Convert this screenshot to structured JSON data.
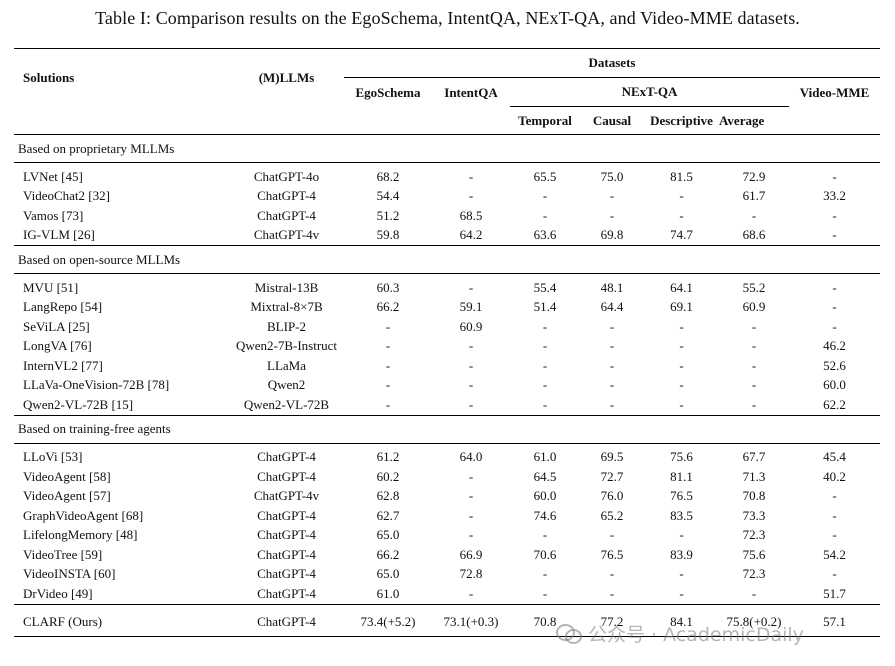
{
  "caption": "Table I: Comparison results on the EgoSchema, IntentQA, NExT-QA, and Video-MME datasets.",
  "headers": {
    "solutions": "Solutions",
    "llms": "(M)LLMs",
    "datasets": "Datasets",
    "egoschema": "EgoSchema",
    "intentqa": "IntentQA",
    "nextqa": "NExT-QA",
    "videomme": "Video-MME",
    "temporal": "Temporal",
    "causal": "Causal",
    "descriptive": "Descriptive",
    "average": "Average"
  },
  "sections": [
    {
      "title": "Based on proprietary MLLMs",
      "rows": [
        {
          "name": "LVNet [45]",
          "llm": "ChatGPT-4o",
          "ego": "68.2",
          "intent": "-",
          "temporal": "65.5",
          "causal": "75.0",
          "desc": "81.5",
          "avg": "72.9",
          "vmme": "-",
          "bold": [
            "ego"
          ]
        },
        {
          "name": "VideoChat2 [32]",
          "llm": "ChatGPT-4",
          "ego": "54.4",
          "intent": "-",
          "temporal": "-",
          "causal": "-",
          "desc": "-",
          "avg": "61.7",
          "vmme": "33.2",
          "bold": []
        },
        {
          "name": "Vamos [73]",
          "llm": "ChatGPT-4",
          "ego": "51.2",
          "intent": "68.5",
          "temporal": "-",
          "causal": "-",
          "desc": "-",
          "avg": "-",
          "vmme": "-",
          "bold": []
        },
        {
          "name": "IG-VLM [26]",
          "llm": "ChatGPT-4v",
          "ego": "59.8",
          "intent": "64.2",
          "temporal": "63.6",
          "causal": "69.8",
          "desc": "74.7",
          "avg": "68.6",
          "vmme": "-",
          "bold": []
        }
      ]
    },
    {
      "title": "Based on open-source MLLMs",
      "rows": [
        {
          "name": "MVU [51]",
          "llm": "Mistral-13B",
          "ego": "60.3",
          "intent": "-",
          "temporal": "55.4",
          "causal": "48.1",
          "desc": "64.1",
          "avg": "55.2",
          "vmme": "-",
          "bold": []
        },
        {
          "name": "LangRepo [54]",
          "llm": "Mixtral-8×7B",
          "ego": "66.2",
          "intent": "59.1",
          "temporal": "51.4",
          "causal": "64.4",
          "desc": "69.1",
          "avg": "60.9",
          "vmme": "-",
          "bold": []
        },
        {
          "name": "SeViLA [25]",
          "llm": "BLIP-2",
          "ego": "-",
          "intent": "60.9",
          "temporal": "-",
          "causal": "-",
          "desc": "-",
          "avg": "-",
          "vmme": "-",
          "bold": []
        },
        {
          "name": "LongVA [76]",
          "llm": "Qwen2-7B-Instruct",
          "ego": "-",
          "intent": "-",
          "temporal": "-",
          "causal": "-",
          "desc": "-",
          "avg": "-",
          "vmme": "46.2",
          "bold": []
        },
        {
          "name": "InternVL2 [77]",
          "llm": "LLaMa",
          "ego": "-",
          "intent": "-",
          "temporal": "-",
          "causal": "-",
          "desc": "-",
          "avg": "-",
          "vmme": "52.6",
          "bold": []
        },
        {
          "name": "LLaVa-OneVision-72B [78]",
          "llm": "Qwen2",
          "ego": "-",
          "intent": "-",
          "temporal": "-",
          "causal": "-",
          "desc": "-",
          "avg": "-",
          "vmme": "60.0",
          "bold": []
        },
        {
          "name": "Qwen2-VL-72B [15]",
          "llm": "Qwen2-VL-72B",
          "ego": "-",
          "intent": "-",
          "temporal": "-",
          "causal": "-",
          "desc": "-",
          "avg": "-",
          "vmme": "62.2",
          "bold": [
            "vmme"
          ]
        }
      ]
    },
    {
      "title": "Based on training-free agents",
      "rows": [
        {
          "name": "LLoVi [53]",
          "llm": "ChatGPT-4",
          "ego": "61.2",
          "intent": "64.0",
          "temporal": "61.0",
          "causal": "69.5",
          "desc": "75.6",
          "avg": "67.7",
          "vmme": "45.4",
          "bold": []
        },
        {
          "name": "VideoAgent [58]",
          "llm": "ChatGPT-4",
          "ego": "60.2",
          "intent": "-",
          "temporal": "64.5",
          "causal": "72.7",
          "desc": "81.1",
          "avg": "71.3",
          "vmme": "40.2",
          "bold": []
        },
        {
          "name": "VideoAgent [57]",
          "llm": "ChatGPT-4v",
          "ego": "62.8",
          "intent": "-",
          "temporal": "60.0",
          "causal": "76.0",
          "desc": "76.5",
          "avg": "70.8",
          "vmme": "-",
          "bold": []
        },
        {
          "name": "GraphVideoAgent [68]",
          "llm": "ChatGPT-4",
          "ego": "62.7",
          "intent": "-",
          "temporal": "74.6",
          "causal": "65.2",
          "desc": "83.5",
          "avg": "73.3",
          "vmme": "-",
          "bold": [
            "temporal"
          ]
        },
        {
          "name": "LifelongMemory [48]",
          "llm": "ChatGPT-4",
          "ego": "65.0",
          "intent": "-",
          "temporal": "-",
          "causal": "-",
          "desc": "-",
          "avg": "72.3",
          "vmme": "-",
          "bold": []
        },
        {
          "name": "VideoTree [59]",
          "llm": "ChatGPT-4",
          "ego": "66.2",
          "intent": "66.9",
          "temporal": "70.6",
          "causal": "76.5",
          "desc": "83.9",
          "avg": "75.6",
          "vmme": "54.2",
          "bold": [
            "causal",
            "desc",
            "avg"
          ]
        },
        {
          "name": "VideoINSTA [60]",
          "llm": "ChatGPT-4",
          "ego": "65.0",
          "intent": "72.8",
          "temporal": "-",
          "causal": "-",
          "desc": "-",
          "avg": "72.3",
          "vmme": "-",
          "bold": [
            "intent"
          ]
        },
        {
          "name": "DrVideo [49]",
          "llm": "ChatGPT-4",
          "ego": "61.0",
          "intent": "-",
          "temporal": "-",
          "causal": "-",
          "desc": "-",
          "avg": "-",
          "vmme": "51.7",
          "bold": []
        }
      ]
    }
  ],
  "final_row": {
    "name": "CLARF (Ours)",
    "llm": "ChatGPT-4",
    "ego": "73.4(+5.2)",
    "intent": "73.1(+0.3)",
    "temporal": "70.8",
    "causal": "77.2",
    "desc": "84.1",
    "avg": "75.8(+0.2)",
    "vmme": "57.1",
    "bold": [
      "ego",
      "intent",
      "causal",
      "desc",
      "avg"
    ]
  },
  "watermark": {
    "text": "公众号 · AcademicDaily",
    "icon": "wechat-logo-icon"
  }
}
